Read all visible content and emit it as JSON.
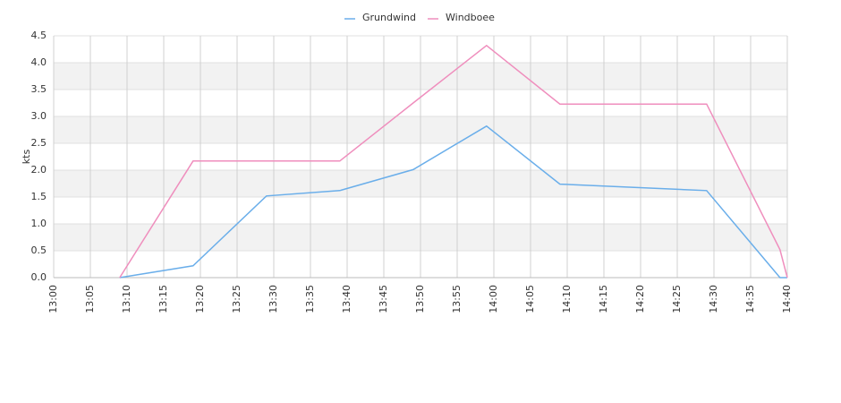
{
  "chart_data": {
    "type": "line",
    "y_label": "kts",
    "x": [
      "13:09",
      "13:19",
      "13:29",
      "13:39",
      "13:49",
      "13:59",
      "14:09",
      "14:29",
      "14:39",
      "14:40"
    ],
    "series": [
      {
        "name": "Grundwind",
        "color": "#6aaeea",
        "values": [
          0.0,
          0.22,
          1.52,
          1.62,
          2.01,
          2.82,
          1.74,
          1.62,
          0.0,
          0.0
        ]
      },
      {
        "name": "Windboee",
        "color": "#ef8ebd",
        "values": [
          0.0,
          2.17,
          2.17,
          2.17,
          3.25,
          4.32,
          3.23,
          3.23,
          0.52,
          0.0
        ]
      }
    ],
    "xlim": [
      "13:00",
      "14:40"
    ],
    "xticks": [
      "13:00",
      "13:05",
      "13:10",
      "13:15",
      "13:20",
      "13:25",
      "13:30",
      "13:35",
      "13:40",
      "13:45",
      "13:50",
      "13:55",
      "14:00",
      "14:05",
      "14:10",
      "14:15",
      "14:20",
      "14:25",
      "14:30",
      "14:35",
      "14:40"
    ],
    "ylim": [
      0,
      4.5
    ],
    "yticks": [
      {
        "value": 0,
        "label": "0.0"
      },
      0.5,
      {
        "value": 1,
        "label": "1.0"
      },
      1.5,
      {
        "value": 2,
        "label": "2.0"
      },
      2.5,
      {
        "value": 3,
        "label": "3.0"
      },
      3.5,
      {
        "value": 4,
        "label": "4.0"
      },
      4.5
    ],
    "grid": true,
    "legend": "top"
  }
}
